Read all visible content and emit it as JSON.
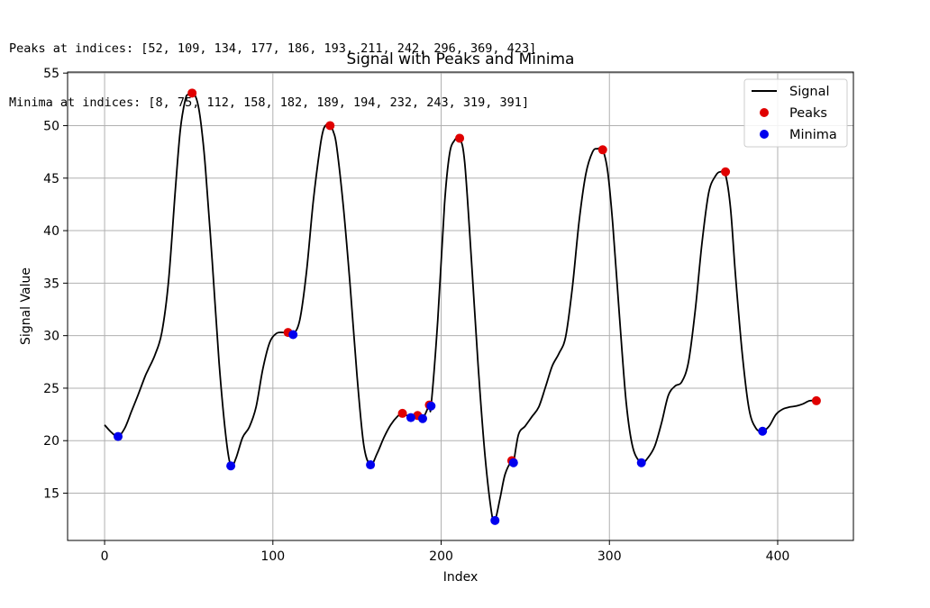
{
  "console": {
    "peaks_line": "Peaks at indices: [52, 109, 134, 177, 186, 193, 211, 242, 296, 369, 423]",
    "minima_line": "Minima at indices: [8, 75, 112, 158, 182, 189, 194, 232, 243, 319, 391]"
  },
  "chart_data": {
    "type": "line",
    "title": "Signal with Peaks and Minima",
    "xlabel": "Index",
    "ylabel": "Signal Value",
    "xlim": [
      -22,
      445
    ],
    "ylim": [
      10.5,
      55.1
    ],
    "xticks": [
      0,
      100,
      200,
      300,
      400
    ],
    "yticks": [
      15,
      20,
      25,
      30,
      35,
      40,
      45,
      50,
      55
    ],
    "grid": true,
    "legend_position": "top-right",
    "series": [
      {
        "name": "Signal",
        "kind": "line",
        "color": "#000000",
        "x": [
          0,
          4,
          8,
          12,
          16,
          20,
          24,
          26,
          30,
          34,
          38,
          42,
          45,
          48,
          50,
          52,
          54,
          56,
          58,
          60,
          64,
          68,
          72,
          75,
          78,
          82,
          86,
          90,
          94,
          98,
          102,
          106,
          109,
          112,
          116,
          120,
          124,
          128,
          130,
          132,
          134,
          136,
          138,
          142,
          146,
          150,
          154,
          158,
          162,
          166,
          170,
          174,
          177,
          182,
          186,
          189,
          193,
          194,
          198,
          202,
          205,
          208,
          211,
          214,
          218,
          222,
          226,
          230,
          232,
          235,
          238,
          242,
          243,
          246,
          250,
          254,
          258,
          262,
          266,
          270,
          274,
          278,
          282,
          286,
          290,
          293,
          296,
          299,
          302,
          306,
          310,
          314,
          319,
          323,
          327,
          331,
          335,
          339,
          343,
          347,
          351,
          355,
          359,
          363,
          366,
          369,
          372,
          375,
          379,
          383,
          387,
          391,
          395,
          399,
          403,
          407,
          411,
          415,
          419,
          423
        ],
        "y": [
          21.5,
          20.8,
          20.4,
          21.2,
          22.8,
          24.4,
          26.1,
          26.8,
          28.2,
          30.3,
          35.2,
          43.8,
          49.6,
          52.5,
          53.0,
          53.1,
          52.8,
          51.6,
          49.2,
          45.8,
          37.0,
          27.5,
          20.5,
          17.6,
          18.3,
          20.3,
          21.3,
          23.2,
          26.8,
          29.3,
          30.2,
          30.3,
          30.2,
          30.1,
          31.5,
          36.1,
          42.8,
          47.9,
          49.6,
          50.1,
          50.0,
          49.4,
          47.9,
          42.1,
          34.6,
          26.2,
          19.6,
          17.7,
          18.8,
          20.3,
          21.5,
          22.3,
          22.6,
          22.2,
          22.4,
          22.1,
          23.4,
          23.3,
          31.5,
          42.5,
          47.3,
          48.6,
          48.8,
          46.5,
          37.2,
          27.1,
          18.7,
          13.1,
          12.4,
          14.5,
          16.8,
          18.1,
          17.9,
          20.6,
          21.4,
          22.3,
          23.2,
          25.1,
          27.1,
          28.3,
          29.9,
          34.6,
          40.9,
          45.4,
          47.5,
          47.8,
          47.7,
          45.6,
          40.6,
          31.8,
          23.6,
          19.3,
          17.9,
          18.4,
          19.5,
          21.7,
          24.3,
          25.2,
          25.6,
          27.5,
          32.4,
          38.8,
          43.6,
          45.2,
          45.6,
          45.3,
          42.1,
          35.6,
          28.2,
          23.0,
          21.2,
          20.9,
          21.4,
          22.5,
          23.0,
          23.2,
          23.3,
          23.5,
          23.8,
          23.8
        ]
      },
      {
        "name": "Peaks",
        "kind": "scatter",
        "color": "#e00000",
        "x": [
          52,
          109,
          134,
          177,
          186,
          193,
          211,
          242,
          296,
          369,
          423
        ],
        "y": [
          53.1,
          30.3,
          50.0,
          22.6,
          22.4,
          23.4,
          48.8,
          18.1,
          47.7,
          45.6,
          23.8
        ]
      },
      {
        "name": "Minima",
        "kind": "scatter",
        "color": "#0000ee",
        "x": [
          8,
          75,
          112,
          158,
          182,
          189,
          194,
          232,
          243,
          319,
          391
        ],
        "y": [
          20.4,
          17.6,
          30.1,
          17.7,
          22.2,
          22.1,
          23.3,
          12.4,
          17.9,
          17.9,
          20.9
        ]
      }
    ]
  }
}
